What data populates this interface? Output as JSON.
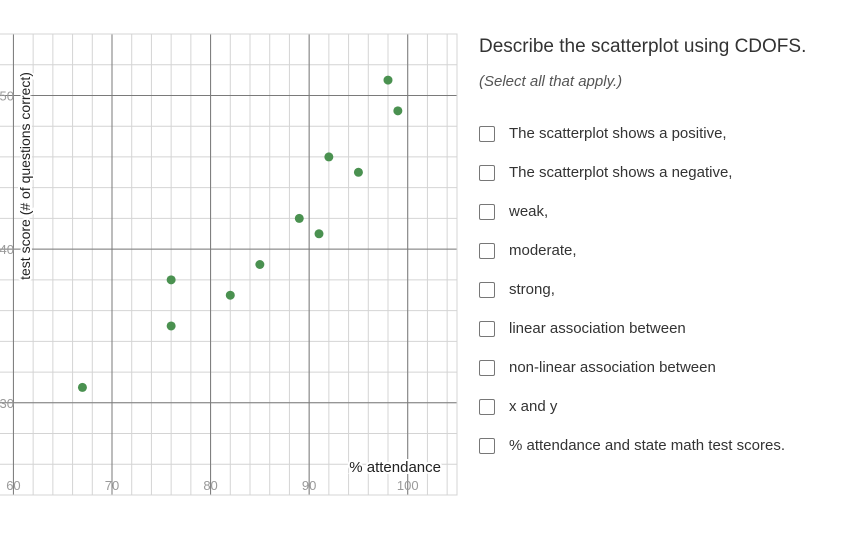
{
  "question": {
    "title": "Describe the scatterplot using CDOFS.",
    "subtitle": "(Select all that apply.)"
  },
  "options": [
    "The scatterplot shows a positive,",
    "The scatterplot shows a negative,",
    "weak,",
    "moderate,",
    "strong,",
    "linear association between",
    "non-linear association between",
    "x and y",
    "% attendance and state math test scores."
  ],
  "colors": {
    "point": "#4a9150",
    "major_grid": "#7a7a7a",
    "minor_grid": "#d4d4d4",
    "tick_label": "#9a9a9a"
  },
  "chart_data": {
    "type": "scatter",
    "xlabel": "% attendance",
    "ylabel": "test score (# of questions correct)",
    "xlim": [
      56,
      105
    ],
    "ylim": [
      24,
      54
    ],
    "x_ticks": [
      60,
      70,
      80,
      90,
      100
    ],
    "y_ticks": [
      30,
      40,
      50
    ],
    "x_minor_step": 2,
    "y_minor_step": 2,
    "grid": true,
    "points": [
      {
        "x": 67,
        "y": 31
      },
      {
        "x": 76,
        "y": 35
      },
      {
        "x": 76,
        "y": 38
      },
      {
        "x": 82,
        "y": 37
      },
      {
        "x": 85,
        "y": 39
      },
      {
        "x": 89,
        "y": 42
      },
      {
        "x": 91,
        "y": 41
      },
      {
        "x": 92,
        "y": 46
      },
      {
        "x": 95,
        "y": 45
      },
      {
        "x": 98,
        "y": 51
      },
      {
        "x": 99,
        "y": 49
      }
    ]
  }
}
